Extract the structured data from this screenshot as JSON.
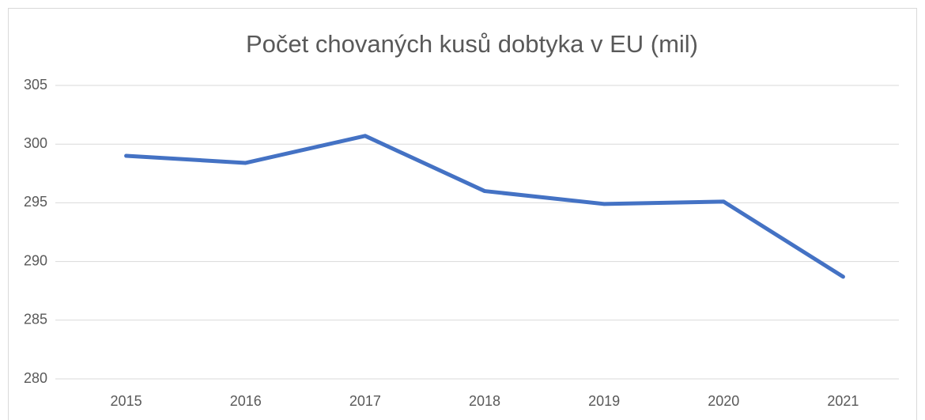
{
  "chart_data": {
    "type": "line",
    "title": "Počet chovaných kusů dobtyka v EU (mil)",
    "categories": [
      "2015",
      "2016",
      "2017",
      "2018",
      "2019",
      "2020",
      "2021"
    ],
    "series": [
      {
        "name": "Počet chovaných kusů dobtyka",
        "color": "#4472c4",
        "values": [
          299.0,
          298.4,
          300.7,
          296.0,
          294.9,
          295.1,
          288.7
        ]
      }
    ],
    "ylim": [
      280,
      305
    ],
    "yticks": [
      280,
      285,
      290,
      295,
      300,
      305
    ],
    "grid": true
  }
}
